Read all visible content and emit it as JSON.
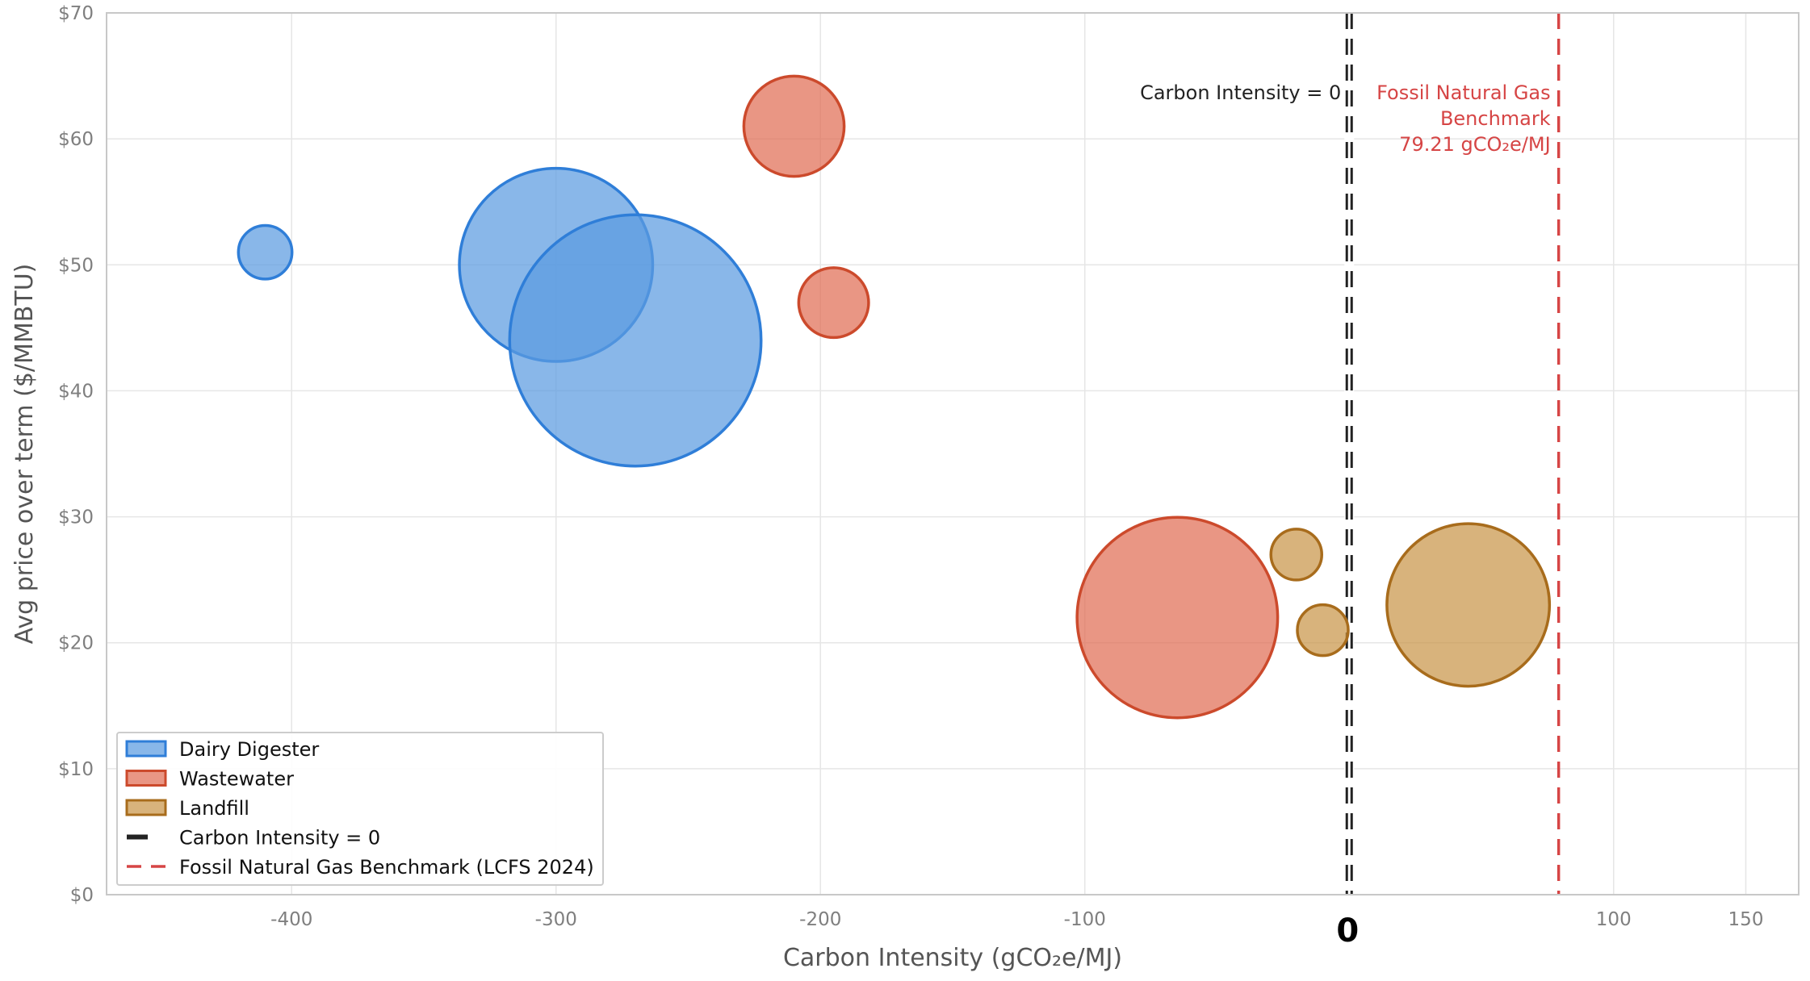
{
  "chart_data": {
    "type": "scatter",
    "xlabel": "Carbon Intensity (gCO₂e/MJ)",
    "ylabel": "Avg price over term ($/MMBTU)",
    "xlim": [
      -470,
      170
    ],
    "ylim": [
      0,
      70
    ],
    "x_ticks": [
      {
        "value": -400,
        "label": "-400"
      },
      {
        "value": -300,
        "label": "-300"
      },
      {
        "value": -200,
        "label": "-200"
      },
      {
        "value": -100,
        "label": "-100"
      },
      {
        "value": 100,
        "label": "100"
      },
      {
        "value": 150,
        "label": "150"
      }
    ],
    "x_zero_label": "0",
    "y_ticks": [
      {
        "value": 0,
        "label": "$0"
      },
      {
        "value": 10,
        "label": "$10"
      },
      {
        "value": 20,
        "label": "$20"
      },
      {
        "value": 30,
        "label": "$30"
      },
      {
        "value": 40,
        "label": "$40"
      },
      {
        "value": 50,
        "label": "$50"
      },
      {
        "value": 60,
        "label": "$60"
      },
      {
        "value": 70,
        "label": "$70"
      }
    ],
    "grid": true,
    "legend_position": "bottom-left",
    "series": [
      {
        "name": "Dairy Digester",
        "fill": "#5b9be0",
        "stroke": "#2f7ed8",
        "points": [
          {
            "x": -410,
            "y": 51,
            "size": 1
          },
          {
            "x": -300,
            "y": 50,
            "size": 13
          },
          {
            "x": -270,
            "y": 44,
            "size": 22
          }
        ]
      },
      {
        "name": "Wastewater",
        "fill": "#e06e55",
        "stroke": "#cc4a2c",
        "points": [
          {
            "x": -210,
            "y": 61,
            "size": 3.5
          },
          {
            "x": -195,
            "y": 47,
            "size": 1.7
          },
          {
            "x": -65,
            "y": 22,
            "size": 14
          }
        ]
      },
      {
        "name": "Landfill",
        "fill": "#c9954a",
        "stroke": "#a86c1c",
        "points": [
          {
            "x": -20,
            "y": 27,
            "size": 0.9
          },
          {
            "x": -10,
            "y": 21,
            "size": 0.9
          },
          {
            "x": 45,
            "y": 23,
            "size": 9.2
          }
        ]
      }
    ],
    "reference_lines": [
      {
        "name": "Carbon Intensity = 0",
        "x": 0,
        "color": "#222222",
        "annotation": [
          "Carbon Intensity = 0"
        ]
      },
      {
        "name": "Fossil Natural Gas Benchmark (LCFS 2024)",
        "x": 79.21,
        "color": "#d64545",
        "annotation": [
          "Fossil Natural Gas",
          "Benchmark",
          "79.21 gCO₂e/MJ"
        ]
      }
    ]
  }
}
